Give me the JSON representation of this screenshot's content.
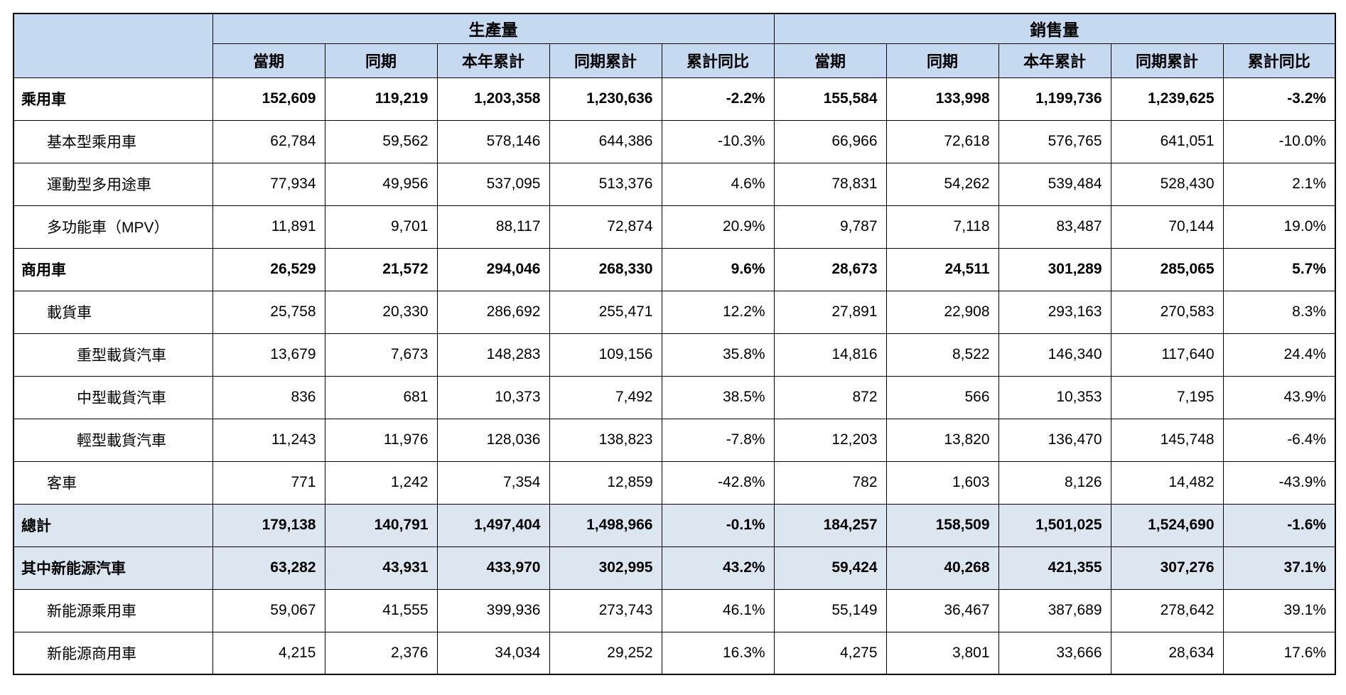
{
  "table": {
    "section_headers": [
      "生產量",
      "銷售量"
    ],
    "sub_columns": [
      "當期",
      "同期",
      "本年累計",
      "同期累計",
      "累計同比"
    ],
    "colors": {
      "header_bg": "#c5d9f1",
      "summary_row_bg": "#dce6f1",
      "border": "#000000"
    },
    "rows": [
      {
        "label": "乘用車",
        "indent": 0,
        "bold": true,
        "shaded": false,
        "production": [
          "152,609",
          "119,219",
          "1,203,358",
          "1,230,636",
          "-2.2%"
        ],
        "sales": [
          "155,584",
          "133,998",
          "1,199,736",
          "1,239,625",
          "-3.2%"
        ]
      },
      {
        "label": "基本型乘用車",
        "indent": 1,
        "bold": false,
        "shaded": false,
        "production": [
          "62,784",
          "59,562",
          "578,146",
          "644,386",
          "-10.3%"
        ],
        "sales": [
          "66,966",
          "72,618",
          "576,765",
          "641,051",
          "-10.0%"
        ]
      },
      {
        "label": "運動型多用途車",
        "indent": 1,
        "bold": false,
        "shaded": false,
        "production": [
          "77,934",
          "49,956",
          "537,095",
          "513,376",
          "4.6%"
        ],
        "sales": [
          "78,831",
          "54,262",
          "539,484",
          "528,430",
          "2.1%"
        ]
      },
      {
        "label": "多功能車（MPV）",
        "indent": 1,
        "bold": false,
        "shaded": false,
        "production": [
          "11,891",
          "9,701",
          "88,117",
          "72,874",
          "20.9%"
        ],
        "sales": [
          "9,787",
          "7,118",
          "83,487",
          "70,144",
          "19.0%"
        ]
      },
      {
        "label": "商用車",
        "indent": 0,
        "bold": true,
        "shaded": false,
        "production": [
          "26,529",
          "21,572",
          "294,046",
          "268,330",
          "9.6%"
        ],
        "sales": [
          "28,673",
          "24,511",
          "301,289",
          "285,065",
          "5.7%"
        ]
      },
      {
        "label": "載貨車",
        "indent": 1,
        "bold": false,
        "shaded": false,
        "production": [
          "25,758",
          "20,330",
          "286,692",
          "255,471",
          "12.2%"
        ],
        "sales": [
          "27,891",
          "22,908",
          "293,163",
          "270,583",
          "8.3%"
        ]
      },
      {
        "label": "重型載貨汽車",
        "indent": 2,
        "bold": false,
        "shaded": false,
        "production": [
          "13,679",
          "7,673",
          "148,283",
          "109,156",
          "35.8%"
        ],
        "sales": [
          "14,816",
          "8,522",
          "146,340",
          "117,640",
          "24.4%"
        ]
      },
      {
        "label": "中型載貨汽車",
        "indent": 2,
        "bold": false,
        "shaded": false,
        "production": [
          "836",
          "681",
          "10,373",
          "7,492",
          "38.5%"
        ],
        "sales": [
          "872",
          "566",
          "10,353",
          "7,195",
          "43.9%"
        ]
      },
      {
        "label": "輕型載貨汽車",
        "indent": 2,
        "bold": false,
        "shaded": false,
        "production": [
          "11,243",
          "11,976",
          "128,036",
          "138,823",
          "-7.8%"
        ],
        "sales": [
          "12,203",
          "13,820",
          "136,470",
          "145,748",
          "-6.4%"
        ]
      },
      {
        "label": "客車",
        "indent": 1,
        "bold": false,
        "shaded": false,
        "production": [
          "771",
          "1,242",
          "7,354",
          "12,859",
          "-42.8%"
        ],
        "sales": [
          "782",
          "1,603",
          "8,126",
          "14,482",
          "-43.9%"
        ]
      },
      {
        "label": "總計",
        "indent": 0,
        "bold": true,
        "shaded": true,
        "production": [
          "179,138",
          "140,791",
          "1,497,404",
          "1,498,966",
          "-0.1%"
        ],
        "sales": [
          "184,257",
          "158,509",
          "1,501,025",
          "1,524,690",
          "-1.6%"
        ]
      },
      {
        "label": "其中新能源汽車",
        "indent": 0,
        "bold": true,
        "shaded": true,
        "production": [
          "63,282",
          "43,931",
          "433,970",
          "302,995",
          "43.2%"
        ],
        "sales": [
          "59,424",
          "40,268",
          "421,355",
          "307,276",
          "37.1%"
        ]
      },
      {
        "label": "新能源乘用車",
        "indent": 1,
        "bold": false,
        "shaded": false,
        "production": [
          "59,067",
          "41,555",
          "399,936",
          "273,743",
          "46.1%"
        ],
        "sales": [
          "55,149",
          "36,467",
          "387,689",
          "278,642",
          "39.1%"
        ]
      },
      {
        "label": "新能源商用車",
        "indent": 1,
        "bold": false,
        "shaded": false,
        "production": [
          "4,215",
          "2,376",
          "34,034",
          "29,252",
          "16.3%"
        ],
        "sales": [
          "4,275",
          "3,801",
          "33,666",
          "28,634",
          "17.6%"
        ]
      }
    ]
  }
}
